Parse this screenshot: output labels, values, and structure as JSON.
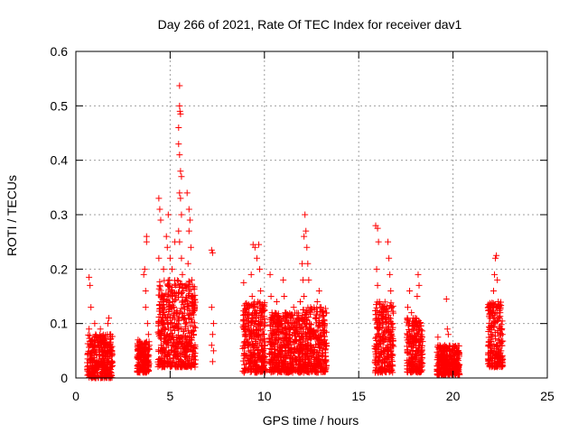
{
  "chart_data": {
    "type": "scatter",
    "title": "Day 266 of 2021, Rate Of TEC Index for receiver dav1",
    "xlabel": "GPS time / hours",
    "ylabel": "ROTI / TECUs",
    "xlim": [
      0,
      25
    ],
    "ylim": [
      0,
      0.6
    ],
    "xticks": [
      0,
      5,
      10,
      15,
      20,
      25
    ],
    "yticks": [
      0,
      0.1,
      0.2,
      0.3,
      0.4,
      0.5,
      0.6
    ],
    "xtick_labels": [
      "0",
      "5",
      "10",
      "15",
      "20",
      "25"
    ],
    "ytick_labels": [
      "0",
      "0.1",
      "0.2",
      "0.3",
      "0.4",
      "0.5",
      "0.6"
    ],
    "grid": true,
    "marker": "+",
    "color": "#ff0000",
    "points": [
      [
        0.7,
        0.185
      ],
      [
        0.75,
        0.17
      ],
      [
        0.8,
        0.13
      ],
      [
        0.7,
        0.09
      ],
      [
        0.75,
        0.06
      ],
      [
        0.8,
        0.04
      ],
      [
        0.85,
        0.02
      ],
      [
        0.9,
        0.07
      ],
      [
        0.95,
        0.05
      ],
      [
        1.0,
        0.03
      ],
      [
        1.05,
        0.08
      ],
      [
        1.1,
        0.05
      ],
      [
        1.15,
        0.02
      ],
      [
        1.2,
        0.06
      ],
      [
        1.25,
        0.04
      ],
      [
        1.3,
        0.09
      ],
      [
        1.35,
        0.03
      ],
      [
        1.4,
        0.05
      ],
      [
        1.45,
        0.07
      ],
      [
        1.5,
        0.02
      ],
      [
        1.55,
        0.04
      ],
      [
        1.6,
        0.06
      ],
      [
        1.65,
        0.03
      ],
      [
        1.7,
        0.1
      ],
      [
        1.75,
        0.11
      ],
      [
        1.8,
        0.05
      ],
      [
        1.85,
        0.08
      ],
      [
        1.9,
        0.04
      ],
      [
        1.0,
        0.1
      ],
      [
        0.9,
        0.01
      ],
      [
        3.3,
        0.07
      ],
      [
        3.35,
        0.04
      ],
      [
        3.4,
        0.02
      ],
      [
        3.45,
        0.06
      ],
      [
        3.5,
        0.05
      ],
      [
        3.55,
        0.03
      ],
      [
        3.6,
        0.19
      ],
      [
        3.65,
        0.2
      ],
      [
        3.7,
        0.16
      ],
      [
        3.7,
        0.13
      ],
      [
        3.75,
        0.26
      ],
      [
        3.75,
        0.25
      ],
      [
        3.8,
        0.1
      ],
      [
        3.8,
        0.05
      ],
      [
        3.85,
        0.08
      ],
      [
        3.85,
        0.03
      ],
      [
        3.6,
        0.01
      ],
      [
        3.9,
        0.06
      ],
      [
        4.4,
        0.33
      ],
      [
        4.45,
        0.31
      ],
      [
        4.5,
        0.29
      ],
      [
        4.4,
        0.22
      ],
      [
        4.45,
        0.17
      ],
      [
        4.5,
        0.14
      ],
      [
        4.4,
        0.1
      ],
      [
        4.5,
        0.08
      ],
      [
        4.55,
        0.05
      ],
      [
        4.6,
        0.12
      ],
      [
        4.65,
        0.2
      ],
      [
        4.7,
        0.15
      ],
      [
        4.75,
        0.09
      ],
      [
        4.8,
        0.26
      ],
      [
        4.85,
        0.24
      ],
      [
        4.9,
        0.3
      ],
      [
        4.95,
        0.18
      ],
      [
        5.0,
        0.22
      ],
      [
        5.0,
        0.11
      ],
      [
        5.05,
        0.07
      ],
      [
        5.1,
        0.2
      ],
      [
        5.15,
        0.14
      ],
      [
        5.2,
        0.06
      ],
      [
        5.25,
        0.25
      ],
      [
        5.3,
        0.17
      ],
      [
        5.35,
        0.1
      ],
      [
        5.4,
        0.04
      ],
      [
        4.6,
        0.03
      ],
      [
        4.7,
        0.02
      ],
      [
        4.9,
        0.06
      ],
      [
        5.5,
        0.537
      ],
      [
        5.5,
        0.5
      ],
      [
        5.52,
        0.49
      ],
      [
        5.55,
        0.485
      ],
      [
        5.45,
        0.46
      ],
      [
        5.45,
        0.43
      ],
      [
        5.5,
        0.41
      ],
      [
        5.55,
        0.38
      ],
      [
        5.6,
        0.37
      ],
      [
        5.5,
        0.34
      ],
      [
        5.55,
        0.33
      ],
      [
        5.6,
        0.3
      ],
      [
        5.45,
        0.27
      ],
      [
        5.5,
        0.25
      ],
      [
        5.6,
        0.22
      ],
      [
        5.65,
        0.19
      ],
      [
        5.7,
        0.16
      ],
      [
        5.75,
        0.13
      ],
      [
        5.8,
        0.1
      ],
      [
        5.85,
        0.07
      ],
      [
        5.9,
        0.04
      ],
      [
        5.95,
        0.21
      ],
      [
        6.0,
        0.27
      ],
      [
        6.05,
        0.29
      ],
      [
        6.1,
        0.24
      ],
      [
        6.15,
        0.18
      ],
      [
        6.2,
        0.12
      ],
      [
        6.25,
        0.08
      ],
      [
        5.9,
        0.34
      ],
      [
        6.0,
        0.31
      ],
      [
        5.7,
        0.05
      ],
      [
        5.8,
        0.03
      ],
      [
        6.1,
        0.02
      ],
      [
        6.2,
        0.05
      ],
      [
        5.6,
        0.09
      ],
      [
        5.3,
        0.02
      ],
      [
        7.2,
        0.235
      ],
      [
        7.25,
        0.23
      ],
      [
        7.2,
        0.13
      ],
      [
        7.3,
        0.1
      ],
      [
        7.25,
        0.08
      ],
      [
        7.2,
        0.06
      ],
      [
        7.3,
        0.05
      ],
      [
        7.25,
        0.03
      ],
      [
        8.9,
        0.175
      ],
      [
        9.0,
        0.12
      ],
      [
        9.05,
        0.09
      ],
      [
        9.1,
        0.06
      ],
      [
        9.15,
        0.04
      ],
      [
        9.2,
        0.02
      ],
      [
        9.3,
        0.19
      ],
      [
        9.35,
        0.15
      ],
      [
        9.4,
        0.245
      ],
      [
        9.5,
        0.24
      ],
      [
        9.6,
        0.22
      ],
      [
        9.7,
        0.245
      ],
      [
        9.75,
        0.2
      ],
      [
        9.8,
        0.16
      ],
      [
        9.85,
        0.12
      ],
      [
        9.9,
        0.08
      ],
      [
        9.95,
        0.05
      ],
      [
        10.0,
        0.03
      ],
      [
        9.45,
        0.1
      ],
      [
        9.55,
        0.07
      ],
      [
        9.65,
        0.04
      ],
      [
        9.25,
        0.08
      ],
      [
        9.35,
        0.03
      ],
      [
        9.5,
        0.13
      ],
      [
        10.3,
        0.19
      ],
      [
        10.35,
        0.15
      ],
      [
        10.4,
        0.12
      ],
      [
        10.45,
        0.09
      ],
      [
        10.5,
        0.06
      ],
      [
        10.55,
        0.04
      ],
      [
        10.6,
        0.02
      ],
      [
        10.65,
        0.14
      ],
      [
        10.7,
        0.1
      ],
      [
        10.75,
        0.07
      ],
      [
        10.85,
        0.05
      ],
      [
        10.9,
        0.03
      ],
      [
        11.0,
        0.18
      ],
      [
        11.05,
        0.15
      ],
      [
        11.1,
        0.12
      ],
      [
        11.2,
        0.09
      ],
      [
        11.3,
        0.06
      ],
      [
        11.4,
        0.04
      ],
      [
        11.5,
        0.02
      ],
      [
        11.55,
        0.13
      ],
      [
        11.6,
        0.1
      ],
      [
        11.7,
        0.07
      ],
      [
        11.8,
        0.05
      ],
      [
        11.9,
        0.14
      ],
      [
        10.8,
        0.11
      ],
      [
        11.35,
        0.08
      ],
      [
        12.0,
        0.21
      ],
      [
        12.05,
        0.18
      ],
      [
        12.1,
        0.26
      ],
      [
        12.15,
        0.3
      ],
      [
        12.2,
        0.27
      ],
      [
        12.25,
        0.24
      ],
      [
        12.3,
        0.21
      ],
      [
        12.35,
        0.18
      ],
      [
        12.1,
        0.15
      ],
      [
        12.2,
        0.12
      ],
      [
        12.3,
        0.09
      ],
      [
        12.4,
        0.06
      ],
      [
        12.5,
        0.04
      ],
      [
        12.6,
        0.02
      ],
      [
        12.7,
        0.11
      ],
      [
        12.8,
        0.14
      ],
      [
        12.9,
        0.16
      ],
      [
        13.0,
        0.13
      ],
      [
        13.1,
        0.1
      ],
      [
        13.2,
        0.07
      ],
      [
        13.25,
        0.04
      ],
      [
        12.6,
        0.08
      ],
      [
        12.9,
        0.05
      ],
      [
        13.0,
        0.02
      ],
      [
        12.45,
        0.13
      ],
      [
        15.9,
        0.28
      ],
      [
        16.0,
        0.275
      ],
      [
        16.05,
        0.25
      ],
      [
        15.95,
        0.2
      ],
      [
        16.0,
        0.17
      ],
      [
        16.1,
        0.14
      ],
      [
        16.2,
        0.11
      ],
      [
        16.3,
        0.08
      ],
      [
        16.4,
        0.05
      ],
      [
        16.5,
        0.03
      ],
      [
        16.55,
        0.25
      ],
      [
        16.6,
        0.22
      ],
      [
        16.65,
        0.19
      ],
      [
        16.7,
        0.16
      ],
      [
        16.75,
        0.13
      ],
      [
        16.8,
        0.1
      ],
      [
        16.4,
        0.07
      ],
      [
        16.2,
        0.02
      ],
      [
        16.6,
        0.04
      ],
      [
        16.3,
        0.12
      ],
      [
        17.6,
        0.13
      ],
      [
        17.7,
        0.16
      ],
      [
        17.8,
        0.12
      ],
      [
        17.9,
        0.09
      ],
      [
        17.95,
        0.06
      ],
      [
        18.0,
        0.04
      ],
      [
        18.05,
        0.02
      ],
      [
        18.1,
        0.15
      ],
      [
        18.15,
        0.19
      ],
      [
        18.2,
        0.17
      ],
      [
        18.25,
        0.1
      ],
      [
        18.3,
        0.07
      ],
      [
        18.35,
        0.05
      ],
      [
        17.75,
        0.03
      ],
      [
        18.0,
        0.11
      ],
      [
        19.2,
        0.075
      ],
      [
        19.3,
        0.06
      ],
      [
        19.4,
        0.04
      ],
      [
        19.5,
        0.03
      ],
      [
        19.6,
        0.02
      ],
      [
        19.65,
        0.145
      ],
      [
        19.7,
        0.09
      ],
      [
        19.75,
        0.08
      ],
      [
        19.8,
        0.05
      ],
      [
        19.9,
        0.04
      ],
      [
        19.95,
        0.03
      ],
      [
        20.0,
        0.02
      ],
      [
        20.1,
        0.015
      ],
      [
        20.2,
        0.01
      ],
      [
        20.3,
        0.02
      ],
      [
        19.5,
        0.05
      ],
      [
        20.0,
        0.05
      ],
      [
        21.9,
        0.06
      ],
      [
        22.0,
        0.08
      ],
      [
        22.05,
        0.1
      ],
      [
        22.1,
        0.13
      ],
      [
        22.15,
        0.16
      ],
      [
        22.2,
        0.19
      ],
      [
        22.25,
        0.22
      ],
      [
        22.3,
        0.225
      ],
      [
        22.35,
        0.18
      ],
      [
        22.4,
        0.14
      ],
      [
        22.45,
        0.11
      ],
      [
        22.5,
        0.08
      ],
      [
        22.55,
        0.05
      ],
      [
        22.6,
        0.03
      ],
      [
        22.1,
        0.04
      ],
      [
        22.3,
        0.06
      ],
      [
        22.2,
        0.02
      ],
      [
        22.5,
        0.12
      ]
    ],
    "clusters": [
      {
        "x": [
          0.6,
          1.95
        ],
        "y": [
          0.0,
          0.08
        ]
      },
      {
        "x": [
          3.25,
          3.9
        ],
        "y": [
          0.01,
          0.07
        ]
      },
      {
        "x": [
          4.35,
          6.35
        ],
        "y": [
          0.02,
          0.18
        ]
      },
      {
        "x": [
          8.85,
          10.05
        ],
        "y": [
          0.01,
          0.14
        ]
      },
      {
        "x": [
          10.25,
          11.95
        ],
        "y": [
          0.01,
          0.12
        ]
      },
      {
        "x": [
          11.95,
          13.3
        ],
        "y": [
          0.01,
          0.13
        ]
      },
      {
        "x": [
          15.85,
          16.85
        ],
        "y": [
          0.01,
          0.14
        ]
      },
      {
        "x": [
          17.55,
          18.4
        ],
        "y": [
          0.01,
          0.11
        ]
      },
      {
        "x": [
          19.15,
          20.35
        ],
        "y": [
          0.005,
          0.06
        ]
      },
      {
        "x": [
          21.85,
          22.65
        ],
        "y": [
          0.02,
          0.14
        ]
      }
    ]
  }
}
